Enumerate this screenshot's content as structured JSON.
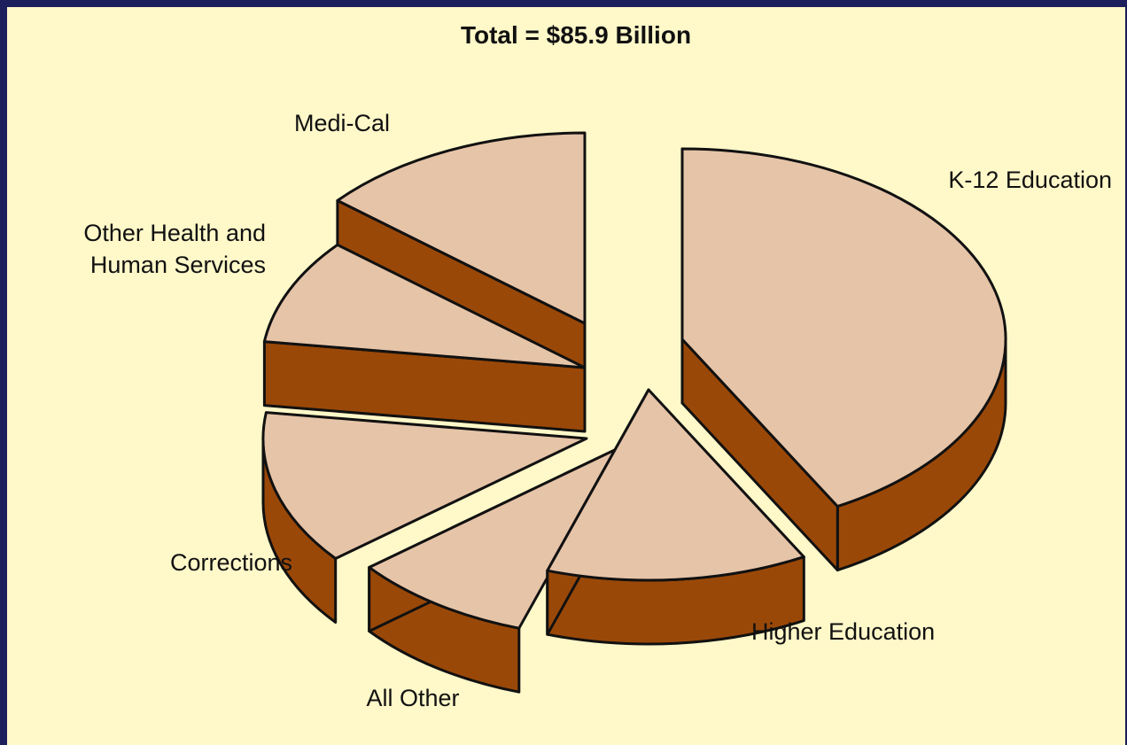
{
  "chart_data": {
    "type": "pie",
    "title": "Total = $85.9 Billion",
    "slices": [
      {
        "label": "K-12 Education",
        "value": 36.1
      },
      {
        "label": "Higher Education",
        "value": 11.2
      },
      {
        "label": "All Other",
        "value": 7.8
      },
      {
        "label": "Corrections",
        "value": 11.2
      },
      {
        "label": "Other Health and Human Services",
        "label_lines": [
          "Other Health and",
          "Human Services"
        ],
        "value": 7.7
      },
      {
        "label": "Medi-Cal",
        "value": 11.9
      }
    ],
    "exploded": true,
    "style": "3d"
  },
  "colors": {
    "background_frame": "#1c1f5c",
    "panel": "#fff8c9",
    "slice_top": "#e6c4a8",
    "slice_side": "#9a4808",
    "outline": "#111111"
  }
}
